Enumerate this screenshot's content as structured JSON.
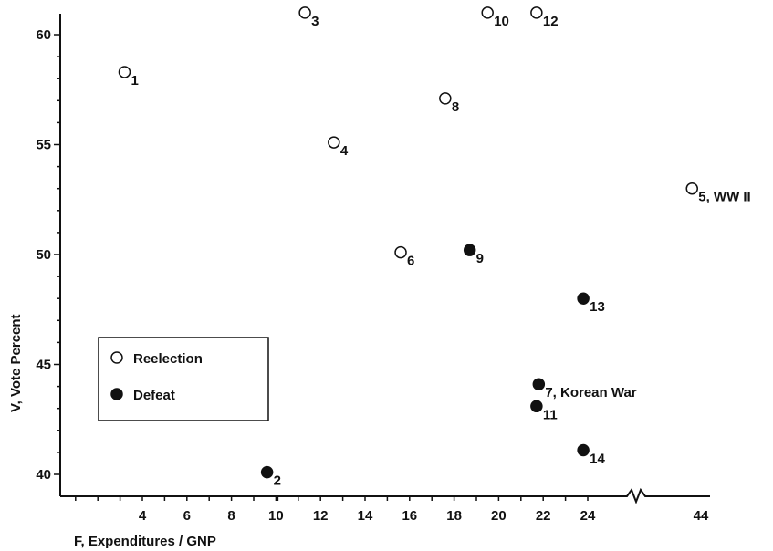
{
  "chart_data": {
    "type": "scatter",
    "xlabel": "F, Expenditures / GNP",
    "ylabel": "V, Vote Percent",
    "x_ticks": [
      {
        "value": 4,
        "label": "4"
      },
      {
        "value": 6,
        "label": "6"
      },
      {
        "value": 8,
        "label": "8"
      },
      {
        "value": 10,
        "label": "10"
      },
      {
        "value": 12,
        "label": "12"
      },
      {
        "value": 14,
        "label": "14"
      },
      {
        "value": 16,
        "label": "16"
      },
      {
        "value": 18,
        "label": "18"
      },
      {
        "value": 20,
        "label": "20"
      },
      {
        "value": 22,
        "label": "22"
      },
      {
        "value": 24,
        "label": "24"
      },
      {
        "value": 44,
        "label": "44"
      }
    ],
    "y_ticks": [
      {
        "value": 40,
        "label": "40"
      },
      {
        "value": 45,
        "label": "45"
      },
      {
        "value": 50,
        "label": "50"
      },
      {
        "value": 55,
        "label": "55"
      },
      {
        "value": 60,
        "label": "60"
      }
    ],
    "xlim": [
      0,
      44
    ],
    "ylim": [
      39,
      61
    ],
    "axis_break": {
      "between": [
        24,
        44
      ]
    },
    "grid": false,
    "legend_position": "middle-left",
    "series": [
      {
        "name": "Reelection",
        "marker": "open-circle",
        "points": [
          {
            "x": 3.2,
            "y": 58.3,
            "label": "1"
          },
          {
            "x": 11.3,
            "y": 61.0,
            "label": "3"
          },
          {
            "x": 12.6,
            "y": 55.1,
            "label": "4"
          },
          {
            "x": 43.6,
            "y": 53.0,
            "label": "5, WW II"
          },
          {
            "x": 15.6,
            "y": 50.1,
            "label": "6"
          },
          {
            "x": 17.6,
            "y": 57.1,
            "label": "8"
          },
          {
            "x": 19.5,
            "y": 61.0,
            "label": "10"
          },
          {
            "x": 21.7,
            "y": 61.0,
            "label": "12"
          }
        ]
      },
      {
        "name": "Defeat",
        "marker": "filled-circle",
        "points": [
          {
            "x": 9.6,
            "y": 40.1,
            "label": "2"
          },
          {
            "x": 21.8,
            "y": 44.1,
            "label": "7, Korean War"
          },
          {
            "x": 18.7,
            "y": 50.2,
            "label": "9"
          },
          {
            "x": 21.7,
            "y": 43.1,
            "label": "11"
          },
          {
            "x": 23.8,
            "y": 48.0,
            "label": "13"
          },
          {
            "x": 23.8,
            "y": 41.1,
            "label": "14"
          }
        ]
      }
    ]
  }
}
